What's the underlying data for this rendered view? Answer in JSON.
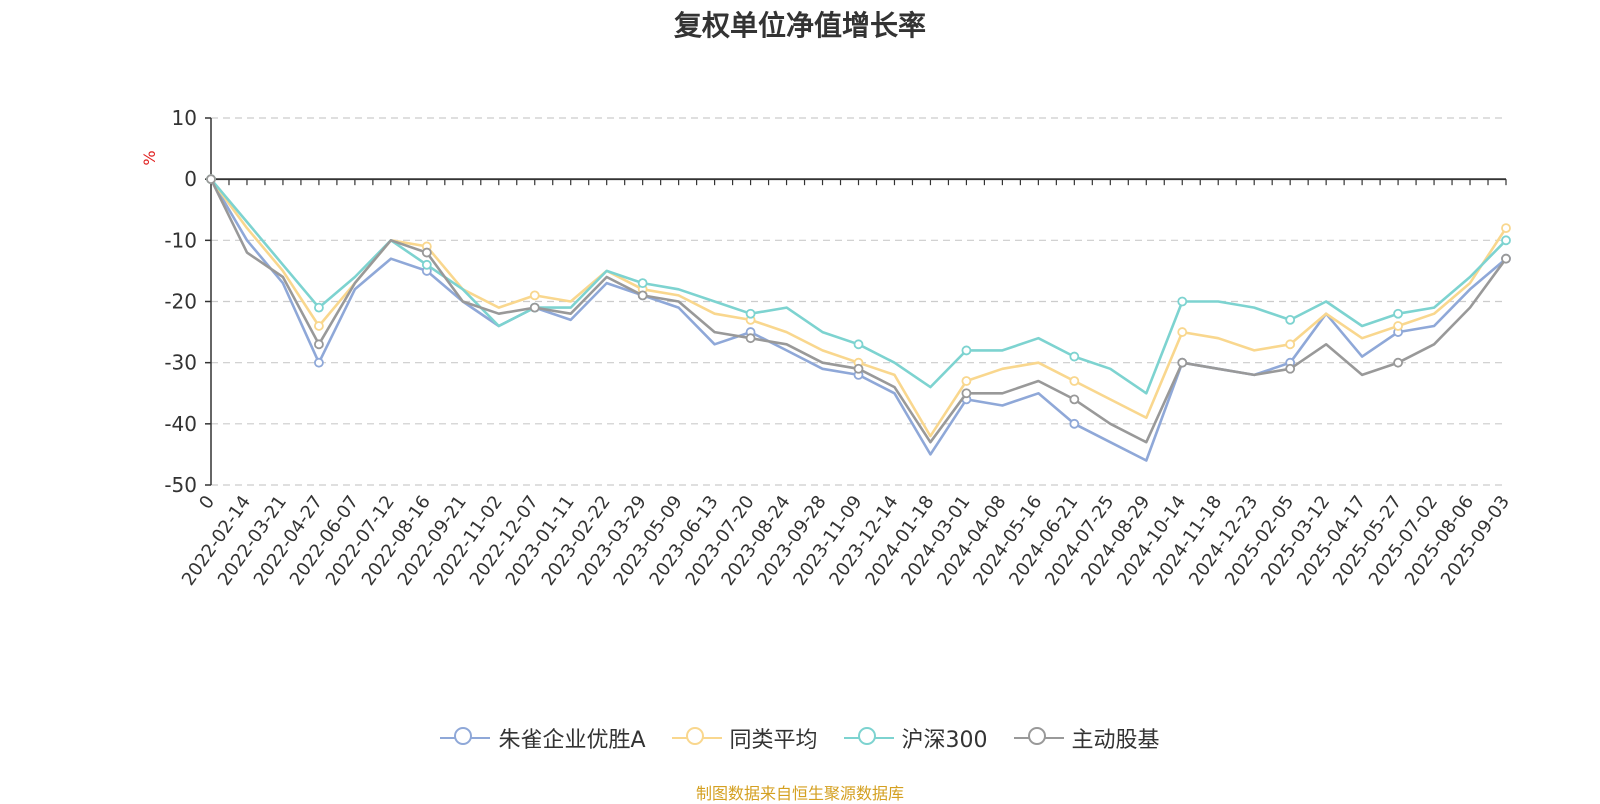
{
  "chart_data": {
    "type": "line",
    "title": "复权单位净值增长率",
    "ylabel": "%",
    "ylim": [
      -50,
      10
    ],
    "yticks": [
      "10",
      "0",
      "-10",
      "-20",
      "-30",
      "-40",
      "-50"
    ],
    "x_tick_labels": [
      "0",
      "2022-02-14",
      "2022-03-21",
      "2022-04-27",
      "2022-06-07",
      "2022-07-12",
      "2022-08-16",
      "2022-09-21",
      "2022-11-02",
      "2022-12-07",
      "2023-01-11",
      "2023-02-22",
      "2023-03-29",
      "2023-05-09",
      "2023-06-13",
      "2023-07-20",
      "2023-08-24",
      "2023-09-28",
      "2023-11-09",
      "2023-12-14",
      "2024-01-18",
      "2024-03-01",
      "2024-04-08",
      "2024-05-16",
      "2024-06-21",
      "2024-07-25",
      "2024-08-29",
      "2024-10-14",
      "2024-11-18",
      "2024-12-23",
      "2025-02-05",
      "2025-03-12",
      "2025-04-17",
      "2025-05-27",
      "2025-07-02",
      "2025-08-06",
      "2025-09-03"
    ],
    "grid": "horizontal dashed",
    "legend_position": "bottom",
    "series": [
      {
        "name": "朱雀企业优胜A",
        "color": "#8fa8d8",
        "values": [
          0,
          -10,
          -17,
          -30,
          -18,
          -13,
          -15,
          -20,
          -24,
          -21,
          -23,
          -17,
          -19,
          -21,
          -27,
          -25,
          -28,
          -31,
          -32,
          -35,
          -45,
          -36,
          -37,
          -35,
          -40,
          -43,
          -46,
          -30,
          -31,
          -32,
          -30,
          -22,
          -29,
          -25,
          -24,
          -18,
          -13
        ]
      },
      {
        "name": "同类平均",
        "color": "#f9d78e",
        "values": [
          0,
          -8,
          -15,
          -24,
          -17,
          -10,
          -11,
          -18,
          -21,
          -19,
          -20,
          -15,
          -18,
          -19,
          -22,
          -23,
          -25,
          -28,
          -30,
          -32,
          -42,
          -33,
          -31,
          -30,
          -33,
          -36,
          -39,
          -25,
          -26,
          -28,
          -27,
          -22,
          -26,
          -24,
          -22,
          -17,
          -8
        ]
      },
      {
        "name": "沪深300",
        "color": "#7dd3d0",
        "values": [
          0,
          -7,
          -14,
          -21,
          -16,
          -10,
          -14,
          -18,
          -24,
          -21,
          -21,
          -15,
          -17,
          -18,
          -20,
          -22,
          -21,
          -25,
          -27,
          -30,
          -34,
          -28,
          -28,
          -26,
          -29,
          -31,
          -35,
          -20,
          -20,
          -21,
          -23,
          -20,
          -24,
          -22,
          -21,
          -16,
          -10
        ]
      },
      {
        "name": "主动股基",
        "color": "#999999",
        "values": [
          0,
          -12,
          -16,
          -27,
          -17,
          -10,
          -12,
          -20,
          -22,
          -21,
          -22,
          -16,
          -19,
          -20,
          -25,
          -26,
          -27,
          -30,
          -31,
          -34,
          -43,
          -35,
          -35,
          -33,
          -36,
          -40,
          -43,
          -30,
          -31,
          -32,
          -31,
          -27,
          -32,
          -30,
          -27,
          -21,
          -13
        ]
      }
    ]
  },
  "legend": {
    "items": [
      {
        "label": "朱雀企业优胜A",
        "color": "#8fa8d8"
      },
      {
        "label": "同类平均",
        "color": "#f9d78e"
      },
      {
        "label": "沪深300",
        "color": "#7dd3d0"
      },
      {
        "label": "主动股基",
        "color": "#999999"
      }
    ]
  },
  "footer": {
    "source": "制图数据来自恒生聚源数据库"
  }
}
